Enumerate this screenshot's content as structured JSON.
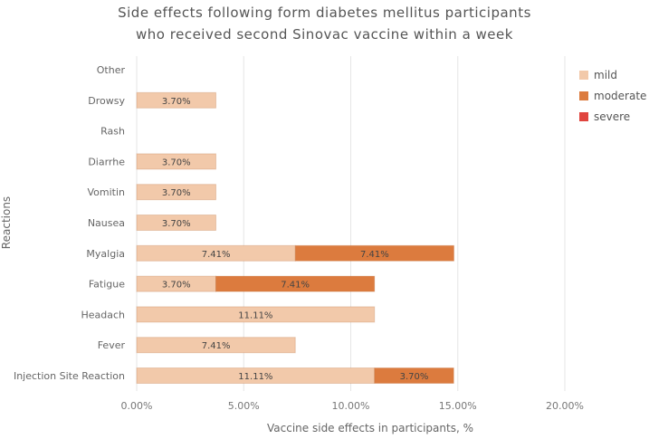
{
  "chart_data": {
    "type": "bar",
    "orientation": "horizontal",
    "stacked": true,
    "title": [
      "Side effects following form diabetes mellitus participants",
      "who received second Sinovac vaccine within a week"
    ],
    "xlabel": "Vaccine side effects in participants, %",
    "ylabel": "Reactions",
    "xlim": [
      0,
      20
    ],
    "xticks": [
      0,
      5,
      10,
      15,
      20
    ],
    "xtick_labels": [
      "0.00%",
      "5.00%",
      "10.00%",
      "15.00%",
      "20.00%"
    ],
    "grid": true,
    "legend_position": "top-right",
    "categories": [
      "Other",
      "Drowsy",
      "Rash",
      "Diarrhe",
      "Vomitin",
      "Nausea",
      "Myalgia",
      "Fatigue",
      "Headach",
      "Fever",
      "Injection Site Reaction"
    ],
    "series": [
      {
        "name": "mild",
        "color": "#f2c9aa",
        "values": [
          0,
          3.7,
          0,
          3.7,
          3.7,
          3.7,
          7.41,
          3.7,
          11.11,
          7.41,
          11.11
        ],
        "labels": [
          "",
          "3.70%",
          "",
          "3.70%",
          "3.70%",
          "3.70%",
          "7.41%",
          "3.70%",
          "11.11%",
          "7.41%",
          "11.11%"
        ]
      },
      {
        "name": "moderate",
        "color": "#dc7b3e",
        "values": [
          0,
          0,
          0,
          0,
          0,
          0,
          7.41,
          7.41,
          0,
          0,
          3.7
        ],
        "labels": [
          "",
          "",
          "",
          "",
          "",
          "",
          "7.41%",
          "7.41%",
          "",
          "",
          "3.70%"
        ]
      },
      {
        "name": "severe",
        "color": "#e0443e",
        "values": [
          0,
          0,
          0,
          0,
          0,
          0,
          0,
          0,
          0,
          0,
          0
        ],
        "labels": [
          "",
          "",
          "",
          "",
          "",
          "",
          "",
          "",
          "",
          "",
          ""
        ]
      }
    ]
  }
}
